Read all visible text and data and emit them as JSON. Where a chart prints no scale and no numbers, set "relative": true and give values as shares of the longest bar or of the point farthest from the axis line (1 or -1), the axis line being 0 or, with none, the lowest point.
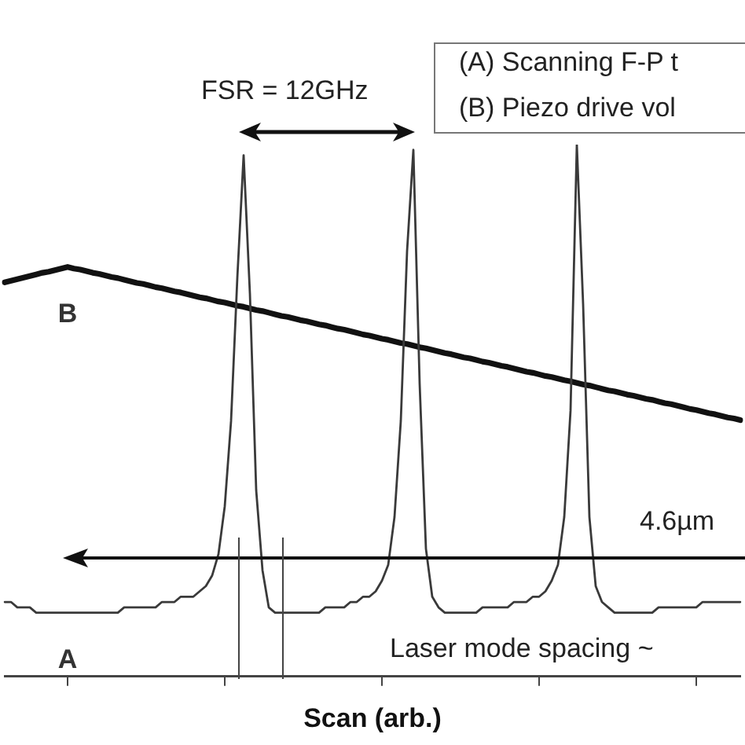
{
  "chart_data": {
    "type": "line",
    "relative": true,
    "xlabel": "Scan (arb.)",
    "grid": false,
    "legend": false,
    "marker": "none",
    "line_style": "solid",
    "annotations": [
      "FSR = 12GHz",
      "(A) Scanning F-P t",
      "(B) Piezo drive vol",
      "4.6µm",
      "Laser mode spacing ~"
    ],
    "categories": [
      null,
      null,
      null,
      null,
      null,
      null,
      null,
      null,
      null,
      null,
      null,
      null,
      null,
      null,
      null,
      null,
      null,
      null,
      null,
      null,
      null,
      null,
      null,
      null,
      null,
      null,
      null,
      null,
      null,
      null,
      null,
      null,
      null,
      null,
      null,
      null,
      null,
      null,
      null,
      null,
      null,
      null,
      null,
      null,
      null,
      null,
      null,
      null,
      null,
      null,
      null,
      null,
      null,
      null,
      null,
      null,
      null,
      null,
      null,
      null,
      null,
      null,
      null,
      null,
      null,
      null,
      null,
      null,
      null,
      null,
      null,
      null,
      null,
      null,
      null,
      null,
      null,
      null,
      null,
      null,
      null,
      null,
      null,
      null,
      null,
      null,
      null,
      null,
      null,
      null,
      null,
      null,
      null,
      null,
      null,
      null,
      null,
      null,
      null,
      null,
      null,
      null,
      null,
      null,
      null,
      null,
      null,
      null,
      null,
      null,
      null,
      null,
      null,
      null,
      null,
      null,
      null,
      null
    ],
    "series": [
      {
        "name": "A",
        "color": "#3a3a3a",
        "values": [
          0.14,
          0.14,
          0.13,
          0.13,
          0.13,
          0.12,
          0.12,
          0.12,
          0.12,
          0.12,
          0.12,
          0.12,
          0.12,
          0.12,
          0.12,
          0.12,
          0.12,
          0.12,
          0.12,
          0.13,
          0.13,
          0.13,
          0.13,
          0.13,
          0.13,
          0.14,
          0.14,
          0.14,
          0.15,
          0.15,
          0.15,
          0.16,
          0.17,
          0.19,
          0.23,
          0.32,
          0.48,
          0.75,
          0.98,
          0.72,
          0.35,
          0.2,
          0.13,
          0.12,
          0.12,
          0.12,
          0.12,
          0.12,
          0.12,
          0.12,
          0.12,
          0.13,
          0.13,
          0.13,
          0.13,
          0.14,
          0.14,
          0.15,
          0.15,
          0.16,
          0.18,
          0.21,
          0.3,
          0.48,
          0.8,
          0.99,
          0.55,
          0.24,
          0.15,
          0.13,
          0.12,
          0.12,
          0.12,
          0.12,
          0.12,
          0.12,
          0.13,
          0.13,
          0.13,
          0.13,
          0.13,
          0.14,
          0.14,
          0.14,
          0.15,
          0.15,
          0.16,
          0.18,
          0.21,
          0.3,
          0.5,
          1.0,
          0.7,
          0.3,
          0.17,
          0.14,
          0.13,
          0.12,
          0.12,
          0.12,
          0.12,
          0.12,
          0.12,
          0.12,
          0.13,
          0.13,
          0.13,
          0.13,
          0.13,
          0.13,
          0.13,
          0.14,
          0.14,
          0.14,
          0.14,
          0.14,
          0.14,
          0.14
        ]
      },
      {
        "name": "B",
        "color": "#111111",
        "values": [
          0.741,
          0.744,
          0.747,
          0.75,
          0.753,
          0.756,
          0.759,
          0.761,
          0.764,
          0.767,
          0.77,
          0.767,
          0.765,
          0.762,
          0.759,
          0.757,
          0.754,
          0.751,
          0.749,
          0.746,
          0.743,
          0.74,
          0.738,
          0.735,
          0.732,
          0.73,
          0.727,
          0.724,
          0.722,
          0.719,
          0.716,
          0.713,
          0.711,
          0.708,
          0.705,
          0.703,
          0.7,
          0.697,
          0.695,
          0.692,
          0.689,
          0.687,
          0.684,
          0.681,
          0.678,
          0.676,
          0.673,
          0.67,
          0.668,
          0.665,
          0.662,
          0.66,
          0.657,
          0.654,
          0.652,
          0.649,
          0.646,
          0.643,
          0.641,
          0.638,
          0.635,
          0.633,
          0.63,
          0.627,
          0.625,
          0.622,
          0.619,
          0.617,
          0.614,
          0.611,
          0.608,
          0.606,
          0.603,
          0.6,
          0.598,
          0.595,
          0.592,
          0.59,
          0.587,
          0.584,
          0.582,
          0.579,
          0.576,
          0.573,
          0.571,
          0.568,
          0.565,
          0.563,
          0.56,
          0.557,
          0.555,
          0.552,
          0.549,
          0.547,
          0.544,
          0.541,
          0.538,
          0.536,
          0.533,
          0.53,
          0.528,
          0.525,
          0.522,
          0.52,
          0.517,
          0.514,
          0.512,
          0.509,
          0.506,
          0.503,
          0.501,
          0.498,
          0.495,
          0.493,
          0.49,
          0.487,
          0.485,
          0.482
        ]
      }
    ]
  }
}
